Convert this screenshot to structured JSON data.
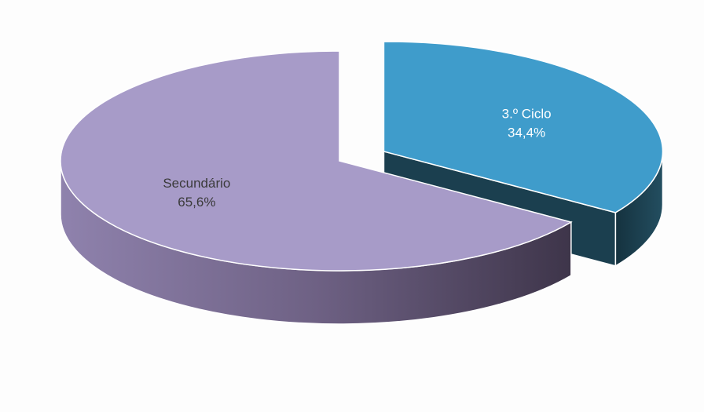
{
  "chart_data": {
    "type": "pie",
    "style": "3d-exploded",
    "slices": [
      {
        "label": "3.º Ciclo",
        "value_label": "34,4%",
        "value": 34.4,
        "color": "#3f9ccb",
        "side_color": "#1b3f4f",
        "exploded": true,
        "label_color": "#ffffff"
      },
      {
        "label": "Secundário",
        "value_label": "65,6%",
        "value": 65.6,
        "color": "#a79bc8",
        "side_color": "#5f536f",
        "exploded": false,
        "label_color": "#3a3a3a"
      }
    ]
  }
}
